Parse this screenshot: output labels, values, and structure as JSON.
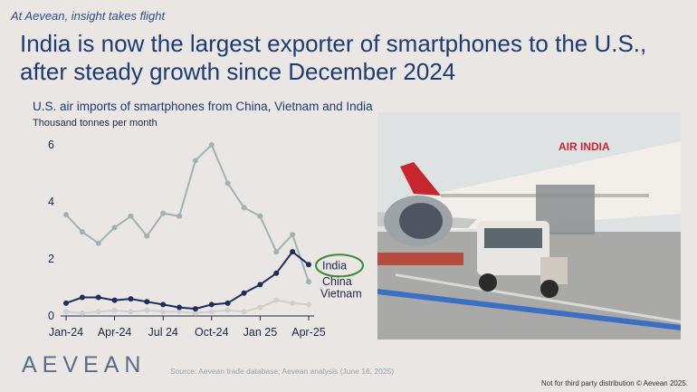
{
  "tagline": "At Aevean, insight takes flight",
  "headline": "India is now the largest exporter of smartphones to the U.S., after steady growth since December 2024",
  "chart_data": {
    "type": "line",
    "title": "U.S. air imports of smartphones from China, Vietnam and India",
    "ylabel": "Thousand tonnes per month",
    "xlabel": "",
    "x": [
      "2024-01",
      "2024-02",
      "2024-03",
      "2024-04",
      "2024-05",
      "2024-06",
      "2024-07",
      "2024-08",
      "2024-09",
      "2024-10",
      "2024-11",
      "2024-12",
      "2025-01",
      "2025-02",
      "2025-03",
      "2025-04"
    ],
    "x_tick_labels": [
      "Jan-24",
      "Apr-24",
      "Jul 24",
      "Oct-24",
      "Jan 25",
      "Apr-25"
    ],
    "x_tick_positions": [
      "2024-01",
      "2024-04",
      "2024-07",
      "2024-10",
      "2025-01",
      "2025-04"
    ],
    "y_ticks": [
      "0",
      "2",
      "4",
      "6"
    ],
    "ylim": [
      0,
      6
    ],
    "grid": false,
    "series": [
      {
        "name": "China",
        "color": "#9fb3b3",
        "marker": "filled-circle",
        "values": [
          3.55,
          2.95,
          2.55,
          3.1,
          3.5,
          2.8,
          3.6,
          3.5,
          5.45,
          6.0,
          4.65,
          3.8,
          3.5,
          2.25,
          2.85,
          1.2
        ]
      },
      {
        "name": "India",
        "color": "#1f2d5c",
        "marker": "filled-circle",
        "values": [
          0.45,
          0.65,
          0.65,
          0.55,
          0.6,
          0.5,
          0.4,
          0.3,
          0.25,
          0.4,
          0.45,
          0.8,
          1.1,
          1.5,
          2.25,
          1.8
        ]
      },
      {
        "name": "Vietnam",
        "color": "#cfcfcf",
        "marker": "filled-circle",
        "values": [
          0.15,
          0.1,
          0.15,
          0.2,
          0.15,
          0.2,
          0.15,
          0.15,
          0.1,
          0.15,
          0.2,
          0.15,
          0.3,
          0.55,
          0.45,
          0.4
        ]
      }
    ],
    "highlight": {
      "series": "India",
      "color": "#3a8a3a"
    }
  },
  "logo": "AEVEAN",
  "source": "Source: Aevean trade database; Aevean analysis (June 16, 2025)",
  "footnote": "Not for third party distribution © Aevean 2025.",
  "photo": {
    "subject": "Air India airplane being loaded with cargo on tarmac",
    "livery_text": "AIR INDIA",
    "colors": {
      "sky": "#dfe2e3",
      "fuselage": "#f2efea",
      "red": "#c8262f",
      "tarmac": "#a9a9a7",
      "blue_line": "#3b6fc4"
    }
  }
}
